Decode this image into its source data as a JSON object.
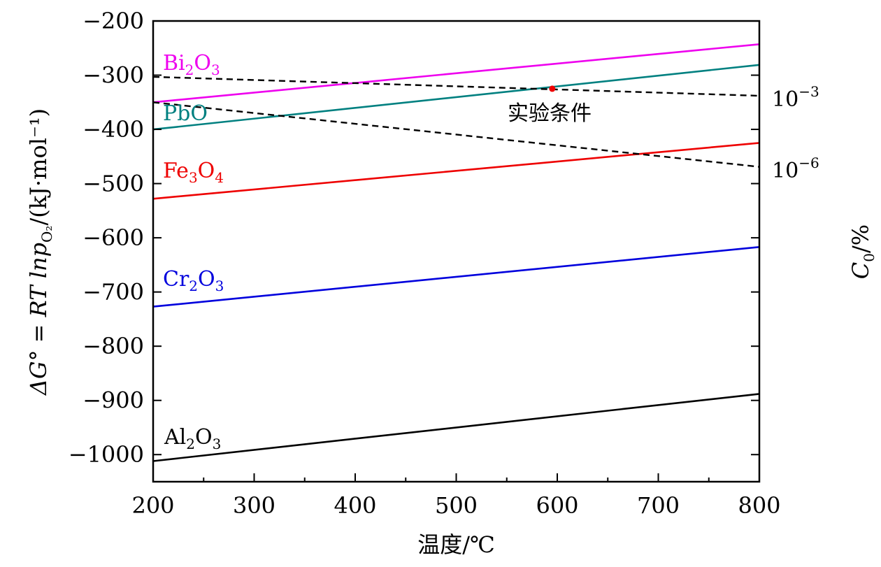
{
  "chart_data": {
    "type": "line",
    "title": "",
    "xlabel": "温度/℃",
    "ylabel": "ΔG° = RT lnp",
    "ylabel_sub": "O₂",
    "ylabel_unit": "/(kJ·mol⁻¹)",
    "y2label": "C",
    "y2label_sub": "0",
    "y2label_unit": "/%",
    "xlim": [
      200,
      800
    ],
    "ylim": [
      -1050,
      -200
    ],
    "x_ticks": [
      200,
      300,
      400,
      500,
      600,
      700,
      800
    ],
    "x_tick_labels": [
      "200",
      "300",
      "400",
      "500",
      "600",
      "700",
      "800"
    ],
    "y_ticks": [
      -200,
      -300,
      -400,
      -500,
      -600,
      -700,
      -800,
      -900,
      -1000
    ],
    "y_tick_labels": [
      "−200",
      "−300",
      "−400",
      "−500",
      "−600",
      "−700",
      "−800",
      "−900",
      "−1000"
    ],
    "grid": false,
    "series": [
      {
        "name": "Bi₂O₃",
        "label_main": "Bi",
        "label_sub1": "2",
        "label_mid": "O",
        "label_sub2": "3",
        "color": "#ee00ee",
        "style": "solid",
        "x": [
          200,
          800
        ],
        "y": [
          -350,
          -243
        ]
      },
      {
        "name": "PbO",
        "label_main": "PbO",
        "color": "#008080",
        "style": "solid",
        "x": [
          200,
          800
        ],
        "y": [
          -400,
          -281
        ]
      },
      {
        "name": "Fe₃O₄",
        "label_main": "Fe",
        "label_sub1": "3",
        "label_mid": "O",
        "label_sub2": "4",
        "color": "#ee0000",
        "style": "solid",
        "x": [
          200,
          800
        ],
        "y": [
          -528,
          -425
        ]
      },
      {
        "name": "Cr₂O₃",
        "label_main": "Cr",
        "label_sub1": "2",
        "label_mid": "O",
        "label_sub2": "3",
        "color": "#0000dd",
        "style": "solid",
        "x": [
          200,
          800
        ],
        "y": [
          -727,
          -617
        ]
      },
      {
        "name": "Al₂O₃",
        "label_main": "Al",
        "label_sub1": "2",
        "label_mid": "O",
        "label_sub2": "3",
        "color": "#000000",
        "style": "solid",
        "x": [
          200,
          800
        ],
        "y": [
          -1012,
          -888
        ]
      }
    ],
    "reference_lines": [
      {
        "label_base": "10",
        "label_exp": "−3",
        "color": "#000000",
        "style": "dashed",
        "x": [
          200,
          800
        ],
        "y": [
          -303,
          -338
        ]
      },
      {
        "label_base": "10",
        "label_exp": "−6",
        "color": "#000000",
        "style": "dashed",
        "x": [
          200,
          800
        ],
        "y": [
          -350,
          -469
        ]
      }
    ],
    "annotation": {
      "text": "实验条件",
      "x": 595,
      "y": -325,
      "color": "#ee0000"
    }
  }
}
